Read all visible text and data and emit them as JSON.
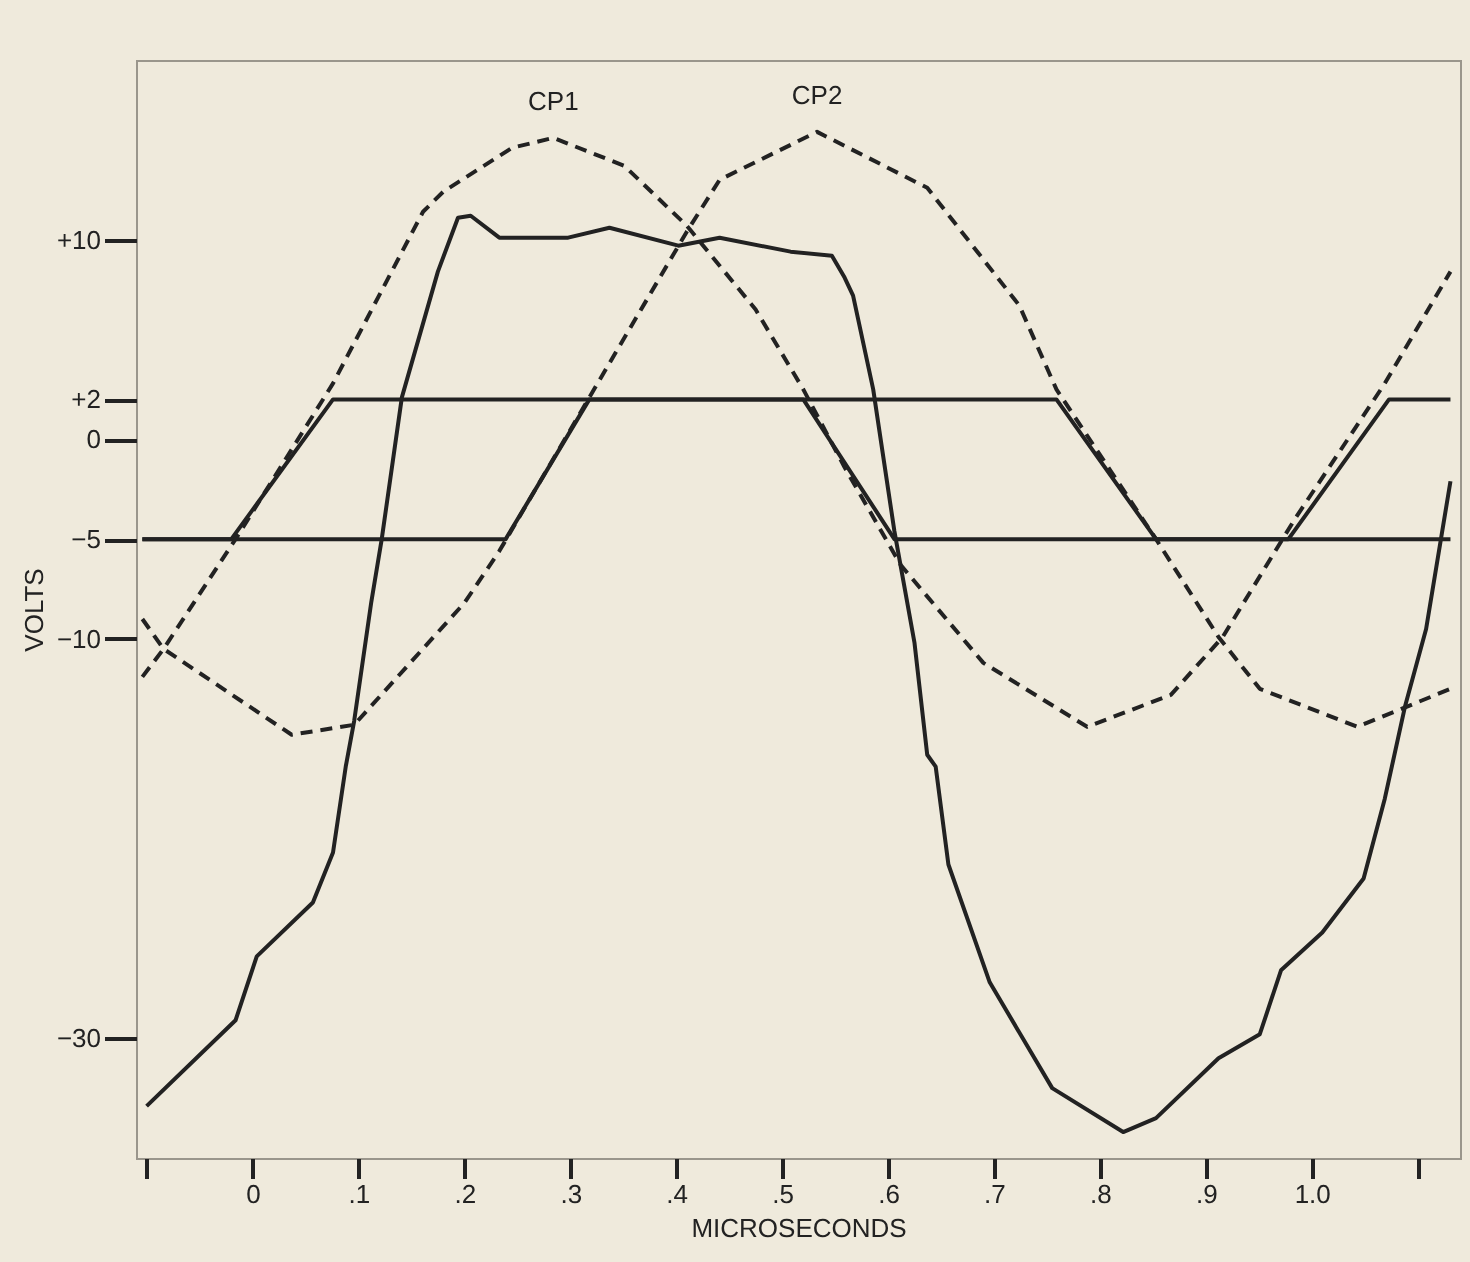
{
  "chart_data": {
    "type": "line",
    "xlabel": "MICROSECONDS",
    "ylabel": "VOLTS",
    "xlim": [
      -0.11,
      1.14
    ],
    "ylim": [
      -36,
      19
    ],
    "xticks": [
      {
        "value": -0.1,
        "label": null
      },
      0,
      {
        "value": 0.1,
        "label": ".1"
      },
      {
        "value": 0.2,
        "label": ".2"
      },
      {
        "value": 0.3,
        "label": ".3"
      },
      {
        "value": 0.4,
        "label": ".4"
      },
      {
        "value": 0.5,
        "label": ".5"
      },
      {
        "value": 0.6,
        "label": ".6"
      },
      {
        "value": 0.7,
        "label": ".7"
      },
      {
        "value": 0.8,
        "label": ".8"
      },
      {
        "value": 0.9,
        "label": ".9"
      },
      {
        "value": 1.0,
        "label": "1.0"
      },
      {
        "value": 1.1,
        "label": null
      }
    ],
    "yticks": [
      {
        "value": 10,
        "label": "+10"
      },
      {
        "value": 2,
        "label": "+2"
      },
      0,
      -5,
      -10,
      -30
    ],
    "grid": false,
    "marker": "none",
    "series": [
      {
        "name": "CP1",
        "color": "#222222",
        "line_style": "dashed",
        "x": [
          -0.104,
          -0.084,
          -0.016,
          0.076,
          0.161,
          0.18,
          0.245,
          0.284,
          0.351,
          0.41,
          0.475,
          0.52,
          0.559,
          0.612,
          0.69,
          0.788,
          0.867,
          0.916,
          0.984,
          1.069,
          1.131
        ],
        "values": [
          -11.9,
          -10.5,
          -5,
          2.8,
          11.4,
          12.4,
          14.6,
          15.1,
          13.7,
          10.7,
          6.5,
          2.5,
          -1.4,
          -6.3,
          -11.2,
          -14.4,
          -12.8,
          -9.9,
          -4.0,
          2.8,
          8.4
        ]
      },
      {
        "name": "CP2",
        "color": "#222222",
        "line_style": "dashed",
        "x": [
          -0.104,
          -0.084,
          0.037,
          0.096,
          0.2,
          0.233,
          0.318,
          0.41,
          0.441,
          0.533,
          0.637,
          0.724,
          0.759,
          0.853,
          0.912,
          0.951,
          1.043,
          1.131
        ],
        "values": [
          -9.0,
          -10.5,
          -14.8,
          -14.3,
          -8.2,
          -5.6,
          2.1,
          10.4,
          13.0,
          15.4,
          12.6,
          6.7,
          2.5,
          -5,
          -9.9,
          -12.5,
          -14.4,
          -12.5
        ]
      },
      {
        "color": "#222222",
        "line_style": "solid",
        "x": [
          -0.104,
          -0.02,
          0.076,
          0.52,
          0.606,
          0.978,
          1.073,
          1.131
        ],
        "values": [
          -5,
          -5,
          2,
          2,
          -5,
          -5,
          2,
          2
        ]
      },
      {
        "color": "#222222",
        "line_style": "solid",
        "x": [
          -0.104,
          0.239,
          0.318,
          0.759,
          0.853,
          1.131
        ],
        "values": [
          -5,
          -5,
          2,
          2,
          -5,
          -5
        ]
      },
      {
        "color": "#222222",
        "line_style": "solid",
        "x": [
          -0.1,
          -0.016,
          0.004,
          0.057,
          0.076,
          0.088,
          0.096,
          0.112,
          0.122,
          0.141,
          0.175,
          0.194,
          0.206,
          0.233,
          0.298,
          0.337,
          0.402,
          0.441,
          0.508,
          0.547,
          0.559,
          0.567,
          0.586,
          0.606,
          0.625,
          0.637,
          0.645,
          0.657,
          0.696,
          0.755,
          0.822,
          0.853,
          0.912,
          0.951,
          0.971,
          1.01,
          1.049,
          1.069,
          1.088,
          1.108,
          1.131
        ],
        "values": [
          -33.4,
          -29.1,
          -25.9,
          -23.2,
          -20.7,
          -16.4,
          -14.1,
          -8.2,
          -5,
          2.1,
          8.4,
          11.1,
          11.2,
          10.1,
          10.1,
          10.6,
          9.7,
          10.1,
          9.4,
          9.2,
          8.1,
          7.2,
          2.5,
          -4.6,
          -10.2,
          -15.8,
          -16.4,
          -21.3,
          -27.2,
          -32.5,
          -34.7,
          -34.0,
          -31.0,
          -29.8,
          -26.6,
          -24.7,
          -22.0,
          -18.0,
          -13.4,
          -9.5,
          -2.1
        ]
      }
    ]
  }
}
